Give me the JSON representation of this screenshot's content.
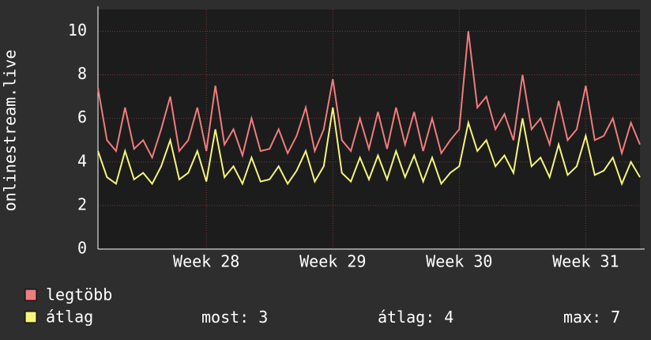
{
  "chart_data": {
    "type": "line",
    "y_label": "onlinestream.live",
    "categories": [
      null,
      null,
      null,
      null,
      null,
      null,
      null,
      null,
      null,
      null,
      null,
      null,
      "Week 28",
      null,
      null,
      null,
      null,
      null,
      null,
      null,
      null,
      null,
      null,
      null,
      null,
      null,
      "Week 29",
      null,
      null,
      null,
      null,
      null,
      null,
      null,
      null,
      null,
      null,
      null,
      null,
      null,
      "Week 30",
      null,
      null,
      null,
      null,
      null,
      null,
      null,
      null,
      null,
      null,
      null,
      null,
      null,
      "Week 31",
      null,
      null,
      null,
      null,
      null,
      null
    ],
    "series": [
      {
        "name": "legtöbb",
        "color": "#f07c7c",
        "values": [
          7.4,
          5,
          4.5,
          6.5,
          4.6,
          5,
          4.2,
          5.5,
          7,
          4.5,
          5,
          6.5,
          4.5,
          7.5,
          4.8,
          5.5,
          4.3,
          6,
          4.5,
          4.6,
          5.5,
          4.4,
          5.2,
          6.5,
          4.5,
          5.5,
          7.8,
          5,
          4.5,
          6,
          4.6,
          6.3,
          4.6,
          6.5,
          4.8,
          6.3,
          4.5,
          6,
          4.4,
          5,
          5.5,
          10,
          6.5,
          7,
          5.5,
          6.2,
          5,
          8,
          5.5,
          6,
          4.8,
          6.8,
          5,
          5.5,
          7.5,
          5,
          5.2,
          6,
          4.4,
          5.8,
          4.8
        ]
      },
      {
        "name": "átlag",
        "color": "#f5f57a",
        "values": [
          4.5,
          3.3,
          3,
          4.5,
          3.2,
          3.5,
          3,
          3.8,
          5,
          3.2,
          3.5,
          4.5,
          3.1,
          5.5,
          3.3,
          3.8,
          3,
          4.2,
          3.1,
          3.2,
          3.8,
          3,
          3.6,
          4.5,
          3.1,
          3.8,
          6.5,
          3.5,
          3.1,
          4.2,
          3.2,
          4.3,
          3.2,
          4.5,
          3.3,
          4.3,
          3.1,
          4.2,
          3,
          3.5,
          3.8,
          5.8,
          4.5,
          5,
          3.8,
          4.3,
          3.5,
          6,
          3.8,
          4.2,
          3.3,
          4.8,
          3.4,
          3.8,
          5.2,
          3.4,
          3.6,
          4.2,
          3,
          4,
          3.3
        ]
      }
    ],
    "ylim": [
      0,
      11
    ],
    "yticks": [
      0,
      2,
      4,
      6,
      8,
      10
    ],
    "grid": true,
    "legend": "bottom-left",
    "stats": [
      {
        "label": "most:",
        "value": 3
      },
      {
        "label": "átlag:",
        "value": 4
      },
      {
        "label": "max:",
        "value": 7
      }
    ]
  }
}
